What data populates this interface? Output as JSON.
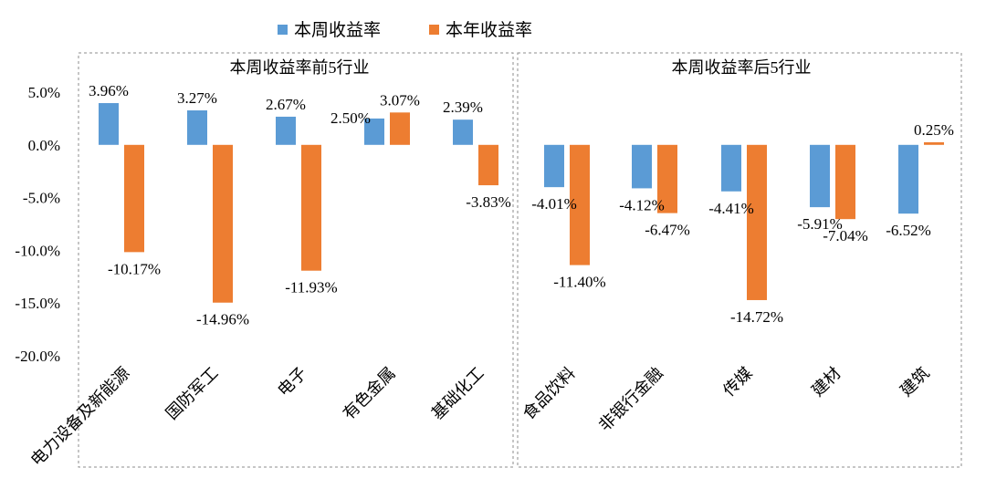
{
  "chart_data": {
    "type": "bar",
    "legend": {
      "position": "top-center",
      "entries": [
        "本周收益率",
        "本年收益率"
      ]
    },
    "colors": {
      "weekly": "#5B9BD5",
      "yearly": "#ED7D31",
      "frame": "#8c8c8c"
    },
    "ylim": [
      -20,
      5
    ],
    "yticks": [
      "5.0%",
      "0.0%",
      "-5.0%",
      "-10.0%",
      "-15.0%",
      "-20.0%"
    ],
    "grid": false,
    "groups": [
      {
        "title": "本周收益率前5行业",
        "start": 0,
        "end": 4
      },
      {
        "title": "本周收益率后5行业",
        "start": 5,
        "end": 9
      }
    ],
    "categories": [
      "电力设备及新能源",
      "国防军工",
      "电子",
      "有色金属",
      "基础化工",
      "食品饮料",
      "非银行金融",
      "传媒",
      "建材",
      "建筑"
    ],
    "series": [
      {
        "name": "本周收益率",
        "values": [
          3.96,
          3.27,
          2.67,
          2.5,
          2.39,
          -4.01,
          -4.12,
          -4.41,
          -5.91,
          -6.52
        ],
        "labels": [
          "3.96%",
          "3.27%",
          "2.67%",
          "2.50%",
          "2.39%",
          "-4.01%",
          "-4.12%",
          "-4.41%",
          "-5.91%",
          "-6.52%"
        ]
      },
      {
        "name": "本年收益率",
        "values": [
          -10.17,
          -14.96,
          -11.93,
          3.07,
          -3.83,
          -11.4,
          -6.47,
          -14.72,
          -7.04,
          0.25
        ],
        "labels": [
          "-10.17%",
          "-14.96%",
          "-11.93%",
          "3.07%",
          "-3.83%",
          "-11.40%",
          "-6.47%",
          "-14.72%",
          "-7.04%",
          "0.25%"
        ]
      }
    ]
  }
}
